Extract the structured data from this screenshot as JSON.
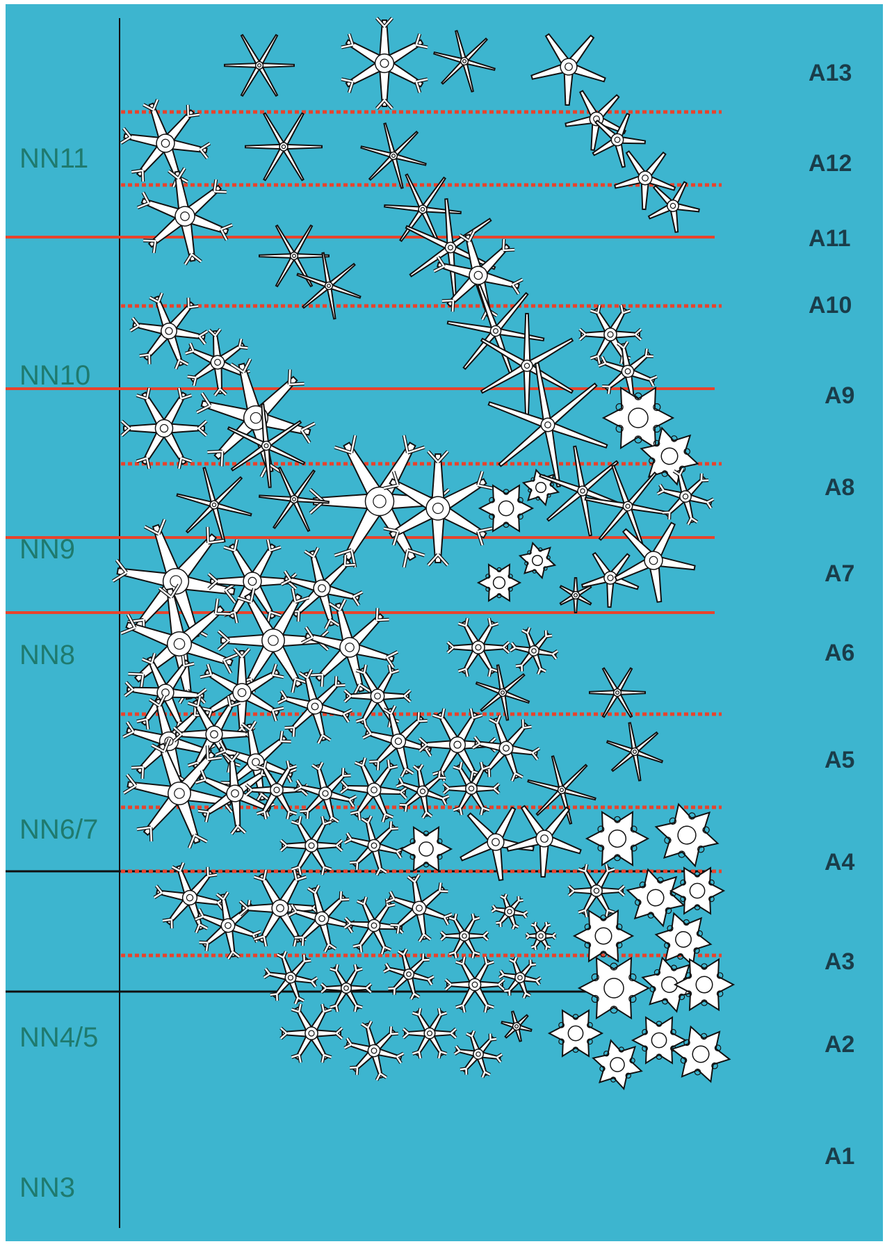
{
  "colors": {
    "background": "#3db5cf",
    "red_line": "#e8432c",
    "black_line": "#101010",
    "zone_text": "#1f7a6e",
    "subzone_text": "#1a3d4a",
    "star_fill": "#ffffff",
    "star_stroke": "#111111"
  },
  "zones": {
    "nn11": "NN11",
    "nn10": "NN10",
    "nn9": "NN9",
    "nn8": "NN8",
    "nn67": "NN6/7",
    "nn45": "NN4/5",
    "nn3": "NN3"
  },
  "subzones": {
    "a13": "A13",
    "a12": "A12",
    "a11": "A11",
    "a10": "A10",
    "a9": "A9",
    "a8": "A8",
    "a7": "A7",
    "a6": "A6",
    "a5": "A5",
    "a4": "A4",
    "a3": "A3",
    "a2": "A2",
    "a1": "A1"
  },
  "icons": {
    "fossil_glyph": "star-shaped-nannofossil-icon"
  }
}
